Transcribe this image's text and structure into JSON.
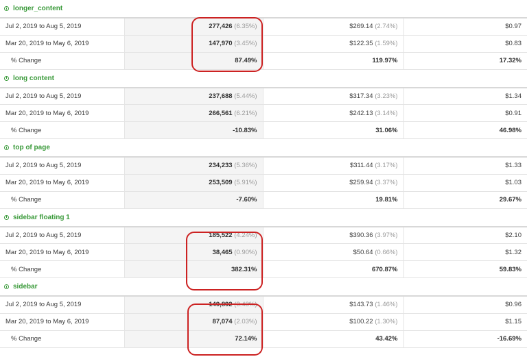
{
  "sections": [
    {
      "title": "longer_content",
      "rows": [
        {
          "label": "Jul 2, 2019 to Aug 5, 2019",
          "c1": "277,426",
          "c1_pct": "(6.35%)",
          "c2": "$269.14",
          "c2_pct": "(2.74%)",
          "c3": "$0.97"
        },
        {
          "label": "Mar 20, 2019 to May 6, 2019",
          "c1": "147,970",
          "c1_pct": "(3.45%)",
          "c2": "$122.35",
          "c2_pct": "(1.59%)",
          "c3": "$0.83"
        }
      ],
      "change": {
        "label": "% Change",
        "c1": "87.49%",
        "c2": "119.97%",
        "c3": "17.32%"
      }
    },
    {
      "title": "long content",
      "rows": [
        {
          "label": "Jul 2, 2019 to Aug 5, 2019",
          "c1": "237,688",
          "c1_pct": "(5.44%)",
          "c2": "$317.34",
          "c2_pct": "(3.23%)",
          "c3": "$1.34"
        },
        {
          "label": "Mar 20, 2019 to May 6, 2019",
          "c1": "266,561",
          "c1_pct": "(6.21%)",
          "c2": "$242.13",
          "c2_pct": "(3.14%)",
          "c3": "$0.91"
        }
      ],
      "change": {
        "label": "% Change",
        "c1": "-10.83%",
        "c2": "31.06%",
        "c3": "46.98%"
      }
    },
    {
      "title": "top of page",
      "rows": [
        {
          "label": "Jul 2, 2019 to Aug 5, 2019",
          "c1": "234,233",
          "c1_pct": "(5.36%)",
          "c2": "$311.44",
          "c2_pct": "(3.17%)",
          "c3": "$1.33"
        },
        {
          "label": "Mar 20, 2019 to May 6, 2019",
          "c1": "253,509",
          "c1_pct": "(5.91%)",
          "c2": "$259.94",
          "c2_pct": "(3.37%)",
          "c3": "$1.03"
        }
      ],
      "change": {
        "label": "% Change",
        "c1": "-7.60%",
        "c2": "19.81%",
        "c3": "29.67%"
      }
    },
    {
      "title": "sidebar floating 1",
      "rows": [
        {
          "label": "Jul 2, 2019 to Aug 5, 2019",
          "c1": "185,522",
          "c1_pct": "(4.24%)",
          "c2": "$390.36",
          "c2_pct": "(3.97%)",
          "c3": "$2.10"
        },
        {
          "label": "Mar 20, 2019 to May 6, 2019",
          "c1": "38,465",
          "c1_pct": "(0.90%)",
          "c2": "$50.64",
          "c2_pct": "(0.66%)",
          "c3": "$1.32"
        }
      ],
      "change": {
        "label": "% Change",
        "c1": "382.31%",
        "c2": "670.87%",
        "c3": "59.83%"
      }
    },
    {
      "title": "sidebar",
      "rows": [
        {
          "label": "Jul 2, 2019 to Aug 5, 2019",
          "c1": "149,892",
          "c1_pct": "(3.43%)",
          "c2": "$143.73",
          "c2_pct": "(1.46%)",
          "c3": "$0.96"
        },
        {
          "label": "Mar 20, 2019 to May 6, 2019",
          "c1": "87,074",
          "c1_pct": "(2.03%)",
          "c2": "$100.22",
          "c2_pct": "(1.30%)",
          "c3": "$1.15"
        }
      ],
      "change": {
        "label": "% Change",
        "c1": "72.14%",
        "c2": "43.42%",
        "c3": "-16.69%"
      }
    }
  ],
  "highlight_color": "#cc2222",
  "header_color": "#3a9a3a",
  "header_icon": "clock-icon"
}
